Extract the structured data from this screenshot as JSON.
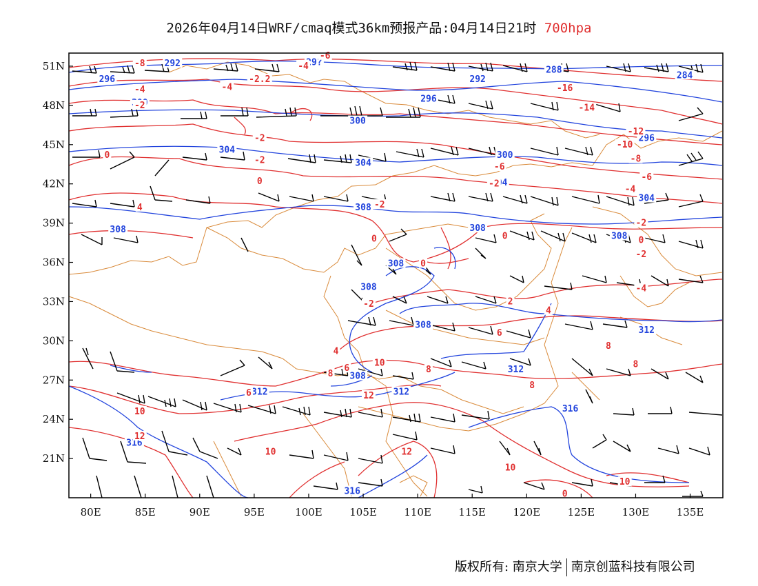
{
  "title": {
    "main": "2026年04月14日WRF/cmaq模式36km预报产品:04月14日21时",
    "level": "700hpa"
  },
  "axes": {
    "lat_labels": [
      "51N",
      "48N",
      "45N",
      "42N",
      "39N",
      "36N",
      "33N",
      "30N",
      "27N",
      "24N",
      "21N"
    ],
    "lat_values": [
      51,
      48,
      45,
      42,
      39,
      36,
      33,
      30,
      27,
      24,
      21
    ],
    "lon_labels": [
      "80E",
      "85E",
      "90E",
      "95E",
      "100E",
      "105E",
      "110E",
      "115E",
      "120E",
      "125E",
      "130E",
      "135E"
    ],
    "lon_values": [
      80,
      85,
      90,
      95,
      100,
      105,
      110,
      115,
      120,
      125,
      130,
      135
    ],
    "lon_range": [
      78,
      138
    ],
    "lat_range": [
      18,
      52
    ]
  },
  "colors": {
    "height_contour": "#2244dd",
    "temperature_contour": "#e03030",
    "boundary": "#d98a3a",
    "wind_barb": "#000000"
  },
  "height_labels": [
    {
      "text": "292",
      "lon": 87.5,
      "lat": 51.2
    },
    {
      "text": "296",
      "lon": 81.5,
      "lat": 50.0
    },
    {
      "text": "300",
      "lon": 84.5,
      "lat": 48.2
    },
    {
      "text": "29?",
      "lon": 100.5,
      "lat": 51.3
    },
    {
      "text": "296",
      "lon": 111.0,
      "lat": 48.5
    },
    {
      "text": "292",
      "lon": 115.5,
      "lat": 50.0
    },
    {
      "text": "288",
      "lon": 122.5,
      "lat": 50.7
    },
    {
      "text": "284",
      "lon": 134.5,
      "lat": 50.3
    },
    {
      "text": "300",
      "lon": 104.5,
      "lat": 46.8
    },
    {
      "text": "304",
      "lon": 92.5,
      "lat": 44.6
    },
    {
      "text": "304",
      "lon": 105.0,
      "lat": 43.6
    },
    {
      "text": "300",
      "lon": 118.0,
      "lat": 44.2
    },
    {
      "text": "296",
      "lon": 131.0,
      "lat": 45.5
    },
    {
      "text": "304",
      "lon": 117.5,
      "lat": 42.1
    },
    {
      "text": "304",
      "lon": 131.0,
      "lat": 40.9
    },
    {
      "text": "308",
      "lon": 82.5,
      "lat": 38.5
    },
    {
      "text": "308",
      "lon": 105.0,
      "lat": 40.2
    },
    {
      "text": "308",
      "lon": 115.5,
      "lat": 38.6
    },
    {
      "text": "308",
      "lon": 128.5,
      "lat": 38.0
    },
    {
      "text": "308",
      "lon": 108.0,
      "lat": 35.9
    },
    {
      "text": "308",
      "lon": 105.5,
      "lat": 34.1
    },
    {
      "text": "308",
      "lon": 110.5,
      "lat": 31.2
    },
    {
      "text": "312",
      "lon": 131.0,
      "lat": 30.8
    },
    {
      "text": "308",
      "lon": 104.5,
      "lat": 27.3
    },
    {
      "text": "312",
      "lon": 119.0,
      "lat": 27.8
    },
    {
      "text": "312",
      "lon": 95.5,
      "lat": 26.1
    },
    {
      "text": "312",
      "lon": 108.5,
      "lat": 26.1
    },
    {
      "text": "316",
      "lon": 124.0,
      "lat": 24.8
    },
    {
      "text": "316",
      "lon": 84.0,
      "lat": 22.2
    },
    {
      "text": "316",
      "lon": 104.0,
      "lat": 18.5
    }
  ],
  "temp_labels": [
    {
      "text": "-8",
      "lon": 84.5,
      "lat": 51.2
    },
    {
      "text": "-4",
      "lon": 84.5,
      "lat": 49.2
    },
    {
      "text": "-2",
      "lon": 84.5,
      "lat": 48.0
    },
    {
      "text": "-4",
      "lon": 92.5,
      "lat": 49.4
    },
    {
      "text": "-2.2",
      "lon": 95.5,
      "lat": 50.0
    },
    {
      "text": "-4",
      "lon": 99.5,
      "lat": 51.0
    },
    {
      "text": "-6",
      "lon": 101.5,
      "lat": 51.8
    },
    {
      "text": "-16",
      "lon": 123.5,
      "lat": 49.3
    },
    {
      "text": "-14",
      "lon": 125.5,
      "lat": 47.8
    },
    {
      "text": "-12",
      "lon": 130.0,
      "lat": 46.0
    },
    {
      "text": "-10",
      "lon": 129.0,
      "lat": 45.0
    },
    {
      "text": "-8",
      "lon": 130.0,
      "lat": 43.9
    },
    {
      "text": "-6",
      "lon": 131.0,
      "lat": 42.5
    },
    {
      "text": "-4",
      "lon": 129.5,
      "lat": 41.6
    },
    {
      "text": "-2",
      "lon": 130.5,
      "lat": 39.0
    },
    {
      "text": "0",
      "lon": 130.5,
      "lat": 37.7
    },
    {
      "text": "-2",
      "lon": 130.5,
      "lat": 36.6
    },
    {
      "text": "-4",
      "lon": 130.5,
      "lat": 34.0
    },
    {
      "text": "-6",
      "lon": 117.5,
      "lat": 43.3
    },
    {
      "text": "-2",
      "lon": 117.0,
      "lat": 42.0
    },
    {
      "text": "-2",
      "lon": 95.5,
      "lat": 45.5
    },
    {
      "text": "-2",
      "lon": 95.5,
      "lat": 43.8
    },
    {
      "text": "0",
      "lon": 81.5,
      "lat": 44.2
    },
    {
      "text": "0",
      "lon": 95.5,
      "lat": 42.2
    },
    {
      "text": "4",
      "lon": 84.5,
      "lat": 40.2
    },
    {
      "text": "-2",
      "lon": 106.5,
      "lat": 40.4
    },
    {
      "text": "0",
      "lon": 106.0,
      "lat": 37.8
    },
    {
      "text": "0",
      "lon": 118.0,
      "lat": 38.0
    },
    {
      "text": "0",
      "lon": 110.5,
      "lat": 35.9
    },
    {
      "text": "-2",
      "lon": 105.5,
      "lat": 32.8
    },
    {
      "text": "2",
      "lon": 118.5,
      "lat": 33.0
    },
    {
      "text": "4",
      "lon": 122.0,
      "lat": 32.3
    },
    {
      "text": "6",
      "lon": 117.5,
      "lat": 30.6
    },
    {
      "text": "8",
      "lon": 127.5,
      "lat": 29.6
    },
    {
      "text": "4",
      "lon": 102.5,
      "lat": 29.2
    },
    {
      "text": "6",
      "lon": 103.5,
      "lat": 27.9
    },
    {
      "text": "8",
      "lon": 102.0,
      "lat": 27.5
    },
    {
      "text": "10",
      "lon": 106.5,
      "lat": 28.3
    },
    {
      "text": "8",
      "lon": 111.0,
      "lat": 27.8
    },
    {
      "text": "8",
      "lon": 120.5,
      "lat": 26.6
    },
    {
      "text": "8",
      "lon": 130.0,
      "lat": 28.2
    },
    {
      "text": "6",
      "lon": 94.5,
      "lat": 26.0
    },
    {
      "text": "10",
      "lon": 84.5,
      "lat": 24.6
    },
    {
      "text": "12",
      "lon": 84.5,
      "lat": 22.7
    },
    {
      "text": "12",
      "lon": 105.5,
      "lat": 25.8
    },
    {
      "text": "10",
      "lon": 96.5,
      "lat": 21.5
    },
    {
      "text": "12",
      "lon": 109.0,
      "lat": 21.5
    },
    {
      "text": "10",
      "lon": 118.5,
      "lat": 20.3
    },
    {
      "text": "10",
      "lon": 129.0,
      "lat": 19.2
    },
    {
      "text": "0",
      "lon": 123.5,
      "lat": 18.3
    }
  ],
  "footer": {
    "copyright": "版权所有: 南京大学",
    "company": "南京创蓝科技有限公司"
  }
}
